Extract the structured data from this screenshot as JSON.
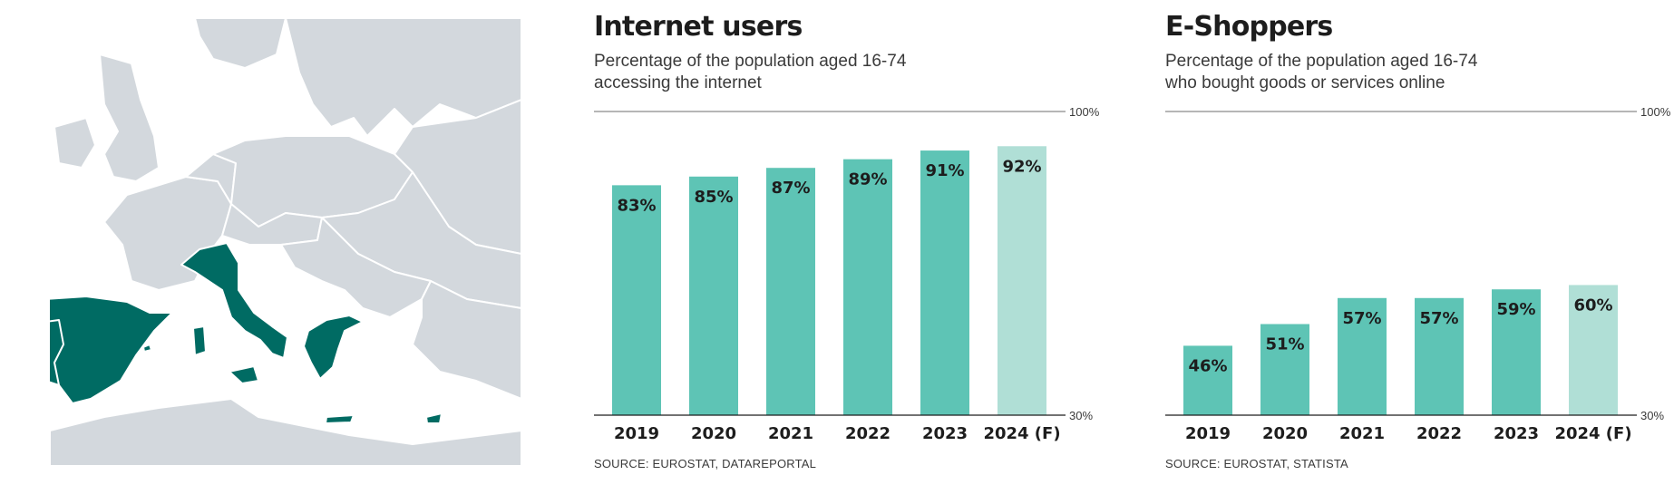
{
  "colors": {
    "map_land": "#d3d8dd",
    "map_border": "#ffffff",
    "map_highlight": "#006b63",
    "bar": "#5ec4b5",
    "bar_forecast": "#b0dfd6",
    "axis": "#6d6d6d"
  },
  "map": {
    "highlighted_countries": [
      "Portugal",
      "Spain",
      "Italy",
      "Greece"
    ]
  },
  "chart_data": [
    {
      "type": "bar",
      "title": "Internet users",
      "subtitle_lines": [
        "Percentage of the population aged 16-74",
        "accessing the internet"
      ],
      "categories": [
        "2019",
        "2020",
        "2021",
        "2022",
        "2023",
        "2024 (F)"
      ],
      "values": [
        83,
        85,
        87,
        89,
        91,
        92
      ],
      "value_labels": [
        "83%",
        "85%",
        "87%",
        "89%",
        "91%",
        "92%"
      ],
      "forecast_index": 5,
      "ylim": [
        30,
        100
      ],
      "y_top_label": "100%",
      "y_bottom_label": "30%",
      "source": "SOURCE: EUROSTAT, DATAREPORTAL"
    },
    {
      "type": "bar",
      "title": "E-Shoppers",
      "subtitle_lines": [
        "Percentage of the population aged 16-74",
        "who bought goods or services online"
      ],
      "categories": [
        "2019",
        "2020",
        "2021",
        "2022",
        "2023",
        "2024 (F)"
      ],
      "values": [
        46,
        51,
        57,
        57,
        59,
        60
      ],
      "value_labels": [
        "46%",
        "51%",
        "57%",
        "57%",
        "59%",
        "60%"
      ],
      "forecast_index": 5,
      "ylim": [
        30,
        100
      ],
      "y_top_label": "100%",
      "y_bottom_label": "30%",
      "source": "SOURCE: EUROSTAT, STATISTA"
    }
  ]
}
